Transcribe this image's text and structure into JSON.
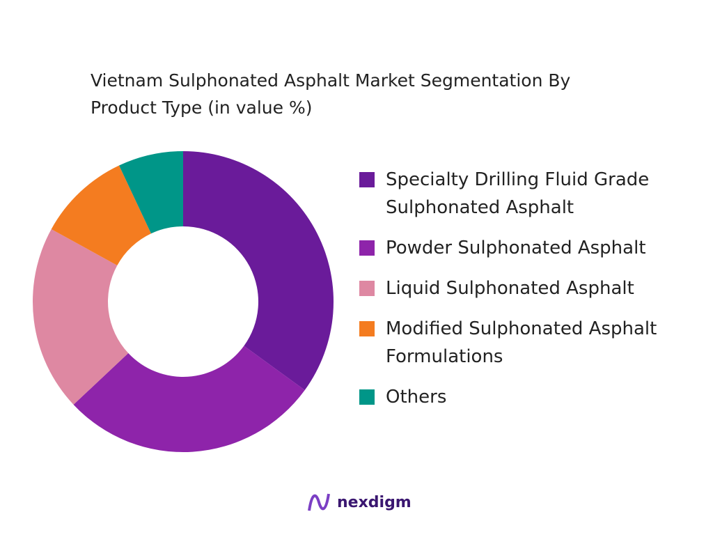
{
  "chart_data": {
    "type": "donut",
    "title": "Vietnam Sulphonated Asphalt Market Segmentation By Product Type (in value %)",
    "categories": [
      "Specialty Drilling Fluid Grade Sulphonated Asphalt",
      "Powder Sulphonated Asphalt",
      "Liquid Sulphonated Asphalt",
      "Modified Sulphonated Asphalt Formulations",
      "Others"
    ],
    "values": [
      35,
      28,
      20,
      10,
      7
    ],
    "colors": [
      "#6a1b9a",
      "#8e24aa",
      "#de88a2",
      "#f47c20",
      "#009688"
    ],
    "legend": "right"
  },
  "brand": "nexdigm"
}
